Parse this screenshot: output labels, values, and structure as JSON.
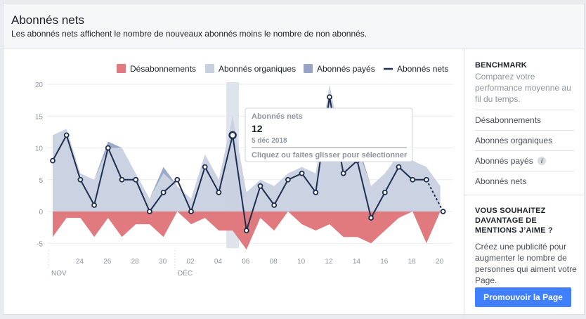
{
  "header": {
    "title": "Abonnés nets",
    "subtitle": "Les abonnés nets affichent le nombre de nouveaux abonnés moins le nombre de non abonnés."
  },
  "legend": {
    "items": [
      {
        "label": "Désabonnements",
        "color": "#e07a7f"
      },
      {
        "label": "Abonnés organiques",
        "color": "#c8d0e0"
      },
      {
        "label": "Abonnés payés",
        "color": "#97a4c5"
      },
      {
        "label": "Abonnés nets",
        "color": "#1e2e4f"
      }
    ]
  },
  "tooltip": {
    "title": "Abonnés nets",
    "value": "12",
    "date": "5 déc 2018",
    "hint": "Cliquez ou faites glisser pour sélectionner"
  },
  "sidebar": {
    "benchmark_title": "BENCHMARK",
    "benchmark_desc": "Comparez votre performance moyenne au fil du temps.",
    "items": [
      {
        "label": "Désabonnements",
        "info": false
      },
      {
        "label": "Abonnés organiques",
        "info": false
      },
      {
        "label": "Abonnés payés",
        "info": true,
        "info_glyph": "i"
      },
      {
        "label": "Abonnés nets",
        "info": false
      }
    ],
    "promo_title": "VOUS SOUHAITEZ DAVANTAGE DE MENTIONS J’AIME ?",
    "promo_desc": "Créez une publicité pour augmenter le nombre de personnes qui aiment votre Page.",
    "promo_button": "Promouvoir la Page"
  },
  "chart_data": {
    "type": "area",
    "title": "",
    "xlabel": "",
    "ylabel": "",
    "ylim": [
      -5,
      20
    ],
    "y_ticks": [
      -5,
      0,
      5,
      10,
      15,
      20
    ],
    "x": [
      "22 nov",
      "23 nov",
      "24 nov",
      "25 nov",
      "26 nov",
      "27 nov",
      "28 nov",
      "29 nov",
      "30 nov",
      "1 déc",
      "2 déc",
      "3 déc",
      "4 déc",
      "5 déc",
      "6 déc",
      "7 déc",
      "8 déc",
      "9 déc",
      "10 déc",
      "11 déc",
      "12 déc",
      "13 déc",
      "14 déc",
      "15 déc",
      "16 déc",
      "17 déc",
      "18 déc",
      "19 déc",
      "20 déc"
    ],
    "x_tick_labels": [
      "24",
      "26",
      "28",
      "30",
      "02",
      "04",
      "06",
      "08",
      "10",
      "12",
      "14",
      "16",
      "18",
      "20"
    ],
    "x_month_labels": [
      "NOV",
      "DÉC"
    ],
    "grid": true,
    "legend_position": "top-right",
    "highlight_index": 13,
    "series": [
      {
        "name": "Désabonnements",
        "type": "area",
        "color": "#e07a7f",
        "values": [
          -4,
          -1,
          -1,
          -4,
          -1,
          -4,
          -2,
          -2,
          -4,
          0,
          -2,
          -1,
          -3,
          -3,
          -6,
          -1,
          -3,
          0,
          -2,
          -3,
          -2,
          -4,
          -4,
          -5,
          -3,
          -1,
          0,
          -5,
          0
        ]
      },
      {
        "name": "Abonnés organiques",
        "type": "area",
        "color": "#c8d0e0",
        "values": [
          12,
          13,
          6,
          5,
          10,
          10,
          6,
          2,
          6,
          4,
          2,
          9,
          5,
          15,
          3,
          5,
          4,
          6,
          7,
          6,
          20,
          9,
          10,
          4,
          6,
          9,
          8,
          7,
          4
        ]
      },
      {
        "name": "Abonnés payés",
        "type": "area",
        "color": "#97a4c5",
        "values": [
          0,
          0,
          0,
          0,
          1,
          0,
          0,
          0,
          1,
          0,
          0,
          0,
          0,
          0,
          0,
          0,
          0,
          0,
          0,
          0,
          0,
          0,
          1,
          0,
          0,
          0,
          0,
          0,
          0
        ]
      },
      {
        "name": "Abonnés nets",
        "type": "line",
        "color": "#1e2e4f",
        "values": [
          8,
          12,
          5,
          1,
          10,
          5,
          5,
          0,
          3,
          5,
          0,
          7,
          3,
          12,
          -3,
          4,
          1,
          5,
          6,
          3,
          18,
          6,
          8,
          -1,
          3,
          7,
          5,
          5,
          0
        ]
      }
    ]
  }
}
